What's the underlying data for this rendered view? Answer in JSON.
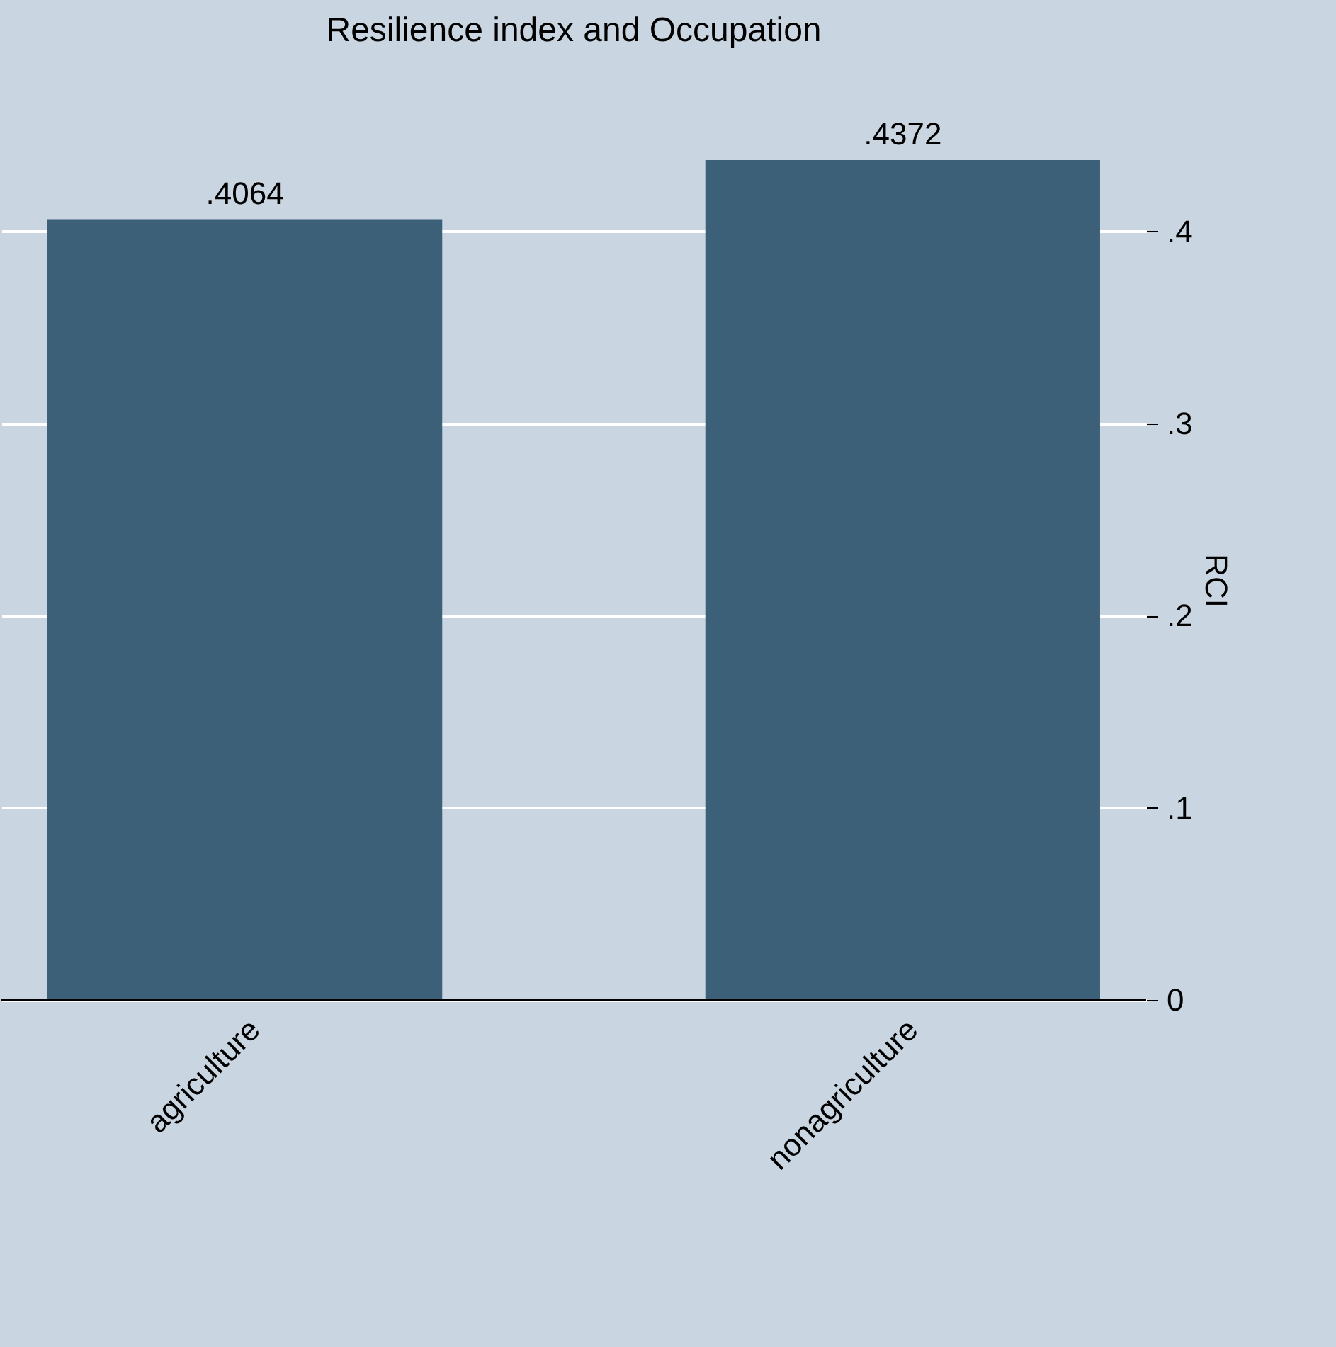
{
  "chart_data": {
    "type": "bar",
    "title": "Resilience index and Occupation",
    "ylabel": "RCI",
    "categories": [
      "agriculture",
      "nonagriculture"
    ],
    "values": [
      0.4064,
      0.4372
    ],
    "color": "#3d6079",
    "value_labels": [
      ".4064",
      ".4372"
    ],
    "ylim": [
      0,
      0.4372
    ],
    "yticks": [
      0,
      {
        "value": 0.1,
        "label": ".1"
      },
      {
        "value": 0.2,
        "label": ".2"
      },
      {
        "value": 0.3,
        "label": ".3"
      },
      {
        "value": 0.4,
        "label": ".4"
      }
    ],
    "grid": "y"
  }
}
